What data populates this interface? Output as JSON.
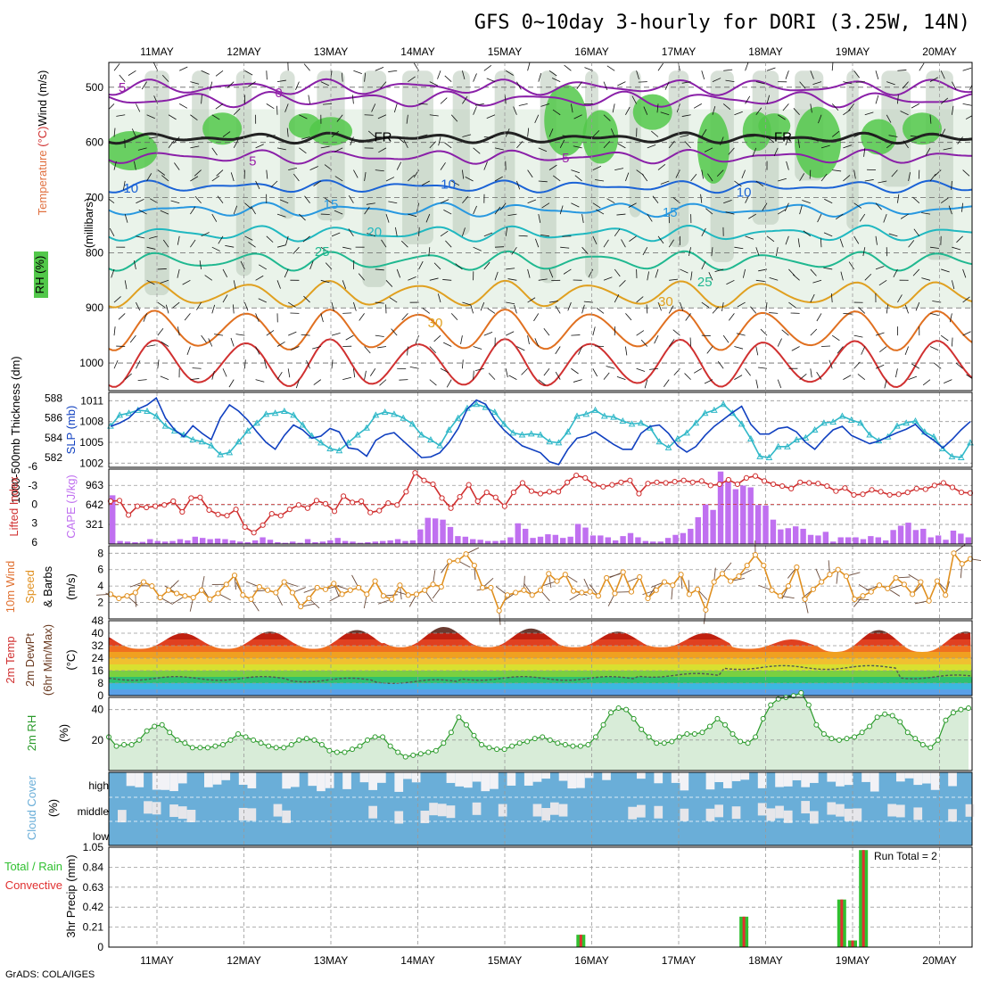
{
  "title": "GFS 0~10day 3-hourly for DORI (3.25W, 14N)",
  "footer": "GrADS: COLA/IGES",
  "dates": [
    "11MAY",
    "12MAY",
    "13MAY",
    "14MAY",
    "15MAY",
    "16MAY",
    "17MAY",
    "18MAY",
    "19MAY",
    "20MAY"
  ],
  "colors": {
    "rh_green": "#52c84a",
    "rh_gray": "#a8b8a8",
    "slp": "#1040c0",
    "thickness": "#30b8c8",
    "cape": "#c070f0",
    "li": "#d03030",
    "wind": "#e09020",
    "rh2m": "#2a9a2a",
    "cloud": "#6aaed8",
    "precip_total": "#30c030",
    "precip_conv": "#e03030"
  },
  "chart_data": [
    {
      "type": "heatmap",
      "name": "upper_air",
      "ylabels_parts": [
        "RH (%)",
        "Temperature",
        " (°C)",
        "Wind",
        " (m/s)"
      ],
      "yunit": "(millibars)",
      "levels": [
        500,
        600,
        700,
        800,
        900,
        1000
      ],
      "ylim": [
        1050,
        455
      ],
      "contour_labels": [
        {
          "text": "5",
          "day": 10.6,
          "p": 500,
          "color": "#9a20a8"
        },
        {
          "text": "0",
          "day": 12.4,
          "p": 510,
          "color": "#9a20a8"
        },
        {
          "text": "FR",
          "day": 13.6,
          "p": 590,
          "color": "#000"
        },
        {
          "text": "FR",
          "day": 18.2,
          "p": 590,
          "color": "#000"
        },
        {
          "text": "5",
          "day": 12.1,
          "p": 634,
          "color": "#9a20a8"
        },
        {
          "text": "5",
          "day": 15.7,
          "p": 628,
          "color": "#9a20a8"
        },
        {
          "text": "10",
          "day": 10.7,
          "p": 683,
          "color": "#1b63d6"
        },
        {
          "text": "10",
          "day": 14.35,
          "p": 676,
          "color": "#1b63d6"
        },
        {
          "text": "10",
          "day": 17.75,
          "p": 690,
          "color": "#1b63d6"
        },
        {
          "text": "15",
          "day": 13.0,
          "p": 712,
          "color": "#2898e0"
        },
        {
          "text": "15",
          "day": 16.9,
          "p": 727,
          "color": "#2898e0"
        },
        {
          "text": "20",
          "day": 13.5,
          "p": 762,
          "color": "#20b8c0"
        },
        {
          "text": "25",
          "day": 12.9,
          "p": 798,
          "color": "#20b890"
        },
        {
          "text": "25",
          "day": 17.3,
          "p": 853,
          "color": "#20b890"
        },
        {
          "text": "30",
          "day": 16.85,
          "p": 888,
          "color": "#e0a020"
        },
        {
          "text": "30",
          "day": 14.2,
          "p": 927,
          "color": "#e0a020"
        }
      ]
    },
    {
      "type": "line",
      "name": "slp_thickness",
      "ylabel_left": "1000-500mb Thickness (dm)",
      "ylabel_right": "SLP (mb)",
      "left_ticks": [
        582,
        584,
        586,
        588
      ],
      "right_ticks": [
        1002,
        1005,
        1008,
        1011
      ],
      "series": [
        {
          "id": "slp",
          "ylim": [
            1001.4,
            1012.2
          ],
          "values": [
            1007.3,
            1007.8,
            1008.5,
            1009.8,
            1010.4,
            1011.4,
            1008.5,
            1006.8,
            1005.8,
            1007.4,
            1006.3,
            1005.4,
            1008.5,
            1010.4,
            1009.5,
            1008.2,
            1006.5,
            1005.0,
            1004.0,
            1006.0,
            1007.5,
            1006.8,
            1005.6,
            1005.9,
            1007.0,
            1006.5,
            1004.2,
            1004.0,
            1003.0,
            1005.3,
            1006.1,
            1006.4,
            1005.2,
            1004.0,
            1002.8,
            1002.9,
            1003.5,
            1005.0,
            1007.0,
            1009.8,
            1011.1,
            1010.5,
            1008.3,
            1006.8,
            1005.6,
            1004.5,
            1004.0,
            1003.5,
            1002.2,
            1001.8,
            1004.0,
            1005.6,
            1005.9,
            1006.5,
            1005.6,
            1004.7,
            1004.0,
            1004.0,
            1006.3,
            1007.3,
            1007.5,
            1006.3,
            1004.5,
            1003.6,
            1004.4,
            1006.0,
            1007.3,
            1008.3,
            1009.3,
            1010.2,
            1007.6,
            1006.2,
            1006.2,
            1007.0,
            1007.2,
            1006.5,
            1005.0,
            1004.0,
            1005.5,
            1006.8,
            1007.3,
            1006.0,
            1005.4,
            1004.8,
            1005.2,
            1005.8,
            1006.4,
            1006.9,
            1007.6,
            1006.2,
            1005.3,
            1004.2,
            1005.4,
            1006.8,
            1008.0
          ]
        },
        {
          "id": "thickness",
          "ylim": [
            581.0,
            588.6
          ],
          "values": [
            585.2,
            586.3,
            586.5,
            586.8,
            586.7,
            586.2,
            585.2,
            584.7,
            584.3,
            583.8,
            583.6,
            583.2,
            582.3,
            582.5,
            583.6,
            584.7,
            585.5,
            586.4,
            586.5,
            586.7,
            586.3,
            585.3,
            584.2,
            583.5,
            582.9,
            582.7,
            583.5,
            584.3,
            585.0,
            586.3,
            586.6,
            586.4,
            586.0,
            585.4,
            584.3,
            583.8,
            583.2,
            584.8,
            586.0,
            587.0,
            587.4,
            587.1,
            586.6,
            585.4,
            584.5,
            584.3,
            584.4,
            584.3,
            583.6,
            583.5,
            584.6,
            586.2,
            586.4,
            586.8,
            586.2,
            586.1,
            585.7,
            585.4,
            585.5,
            585.0,
            583.6,
            583.0,
            583.9,
            584.5,
            585.5,
            586.5,
            586.8,
            587.4,
            586.5,
            585.4,
            583.9,
            582.1,
            582.0,
            583.1,
            583.1,
            583.8,
            584.0,
            584.8,
            585.5,
            585.6,
            586.2,
            585.8,
            585.5,
            584.3,
            583.7,
            584.1,
            585.2,
            585.5,
            585.7,
            584.6,
            584.1,
            582.9,
            582.1,
            582.0,
            583.5
          ]
        }
      ]
    },
    {
      "type": "bar",
      "name": "cape_li",
      "ylabel_left": "Lifted Index",
      "ylabel_right": "CAPE (J/kg)",
      "left_ticks": [
        -6,
        -3,
        0,
        3,
        6
      ],
      "right_ticks": [
        321,
        642,
        963
      ],
      "series": [
        {
          "id": "cape",
          "ylim": [
            0,
            1230
          ],
          "values": [
            800,
            50,
            40,
            30,
            35,
            80,
            50,
            40,
            50,
            80,
            60,
            120,
            100,
            80,
            90,
            80,
            60,
            40,
            30,
            60,
            110,
            70,
            30,
            20,
            40,
            20,
            80,
            30,
            40,
            60,
            100,
            50,
            40,
            20,
            30,
            40,
            50,
            60,
            80,
            50,
            60,
            240,
            430,
            420,
            400,
            280,
            130,
            120,
            80,
            70,
            50,
            50,
            60,
            110,
            340,
            250,
            100,
            120,
            160,
            150,
            100,
            120,
            330,
            270,
            140,
            140,
            110,
            60,
            130,
            180,
            110,
            50,
            40,
            40,
            100,
            150,
            180,
            250,
            440,
            650,
            560,
            1190,
            1050,
            900,
            960,
            930,
            640,
            630,
            400,
            240,
            260,
            290,
            250,
            150,
            140,
            200,
            40,
            110,
            110,
            110,
            80,
            130,
            110,
            60,
            230,
            300,
            350,
            230,
            250,
            110,
            140,
            70,
            220,
            170,
            110
          ]
        },
        {
          "id": "li",
          "ylim": [
            6.3,
            -5.6
          ],
          "values": [
            -0.5,
            -0.6,
            1.7,
            0.3,
            0.5,
            0.3,
            0.1,
            -0.5,
            1.2,
            -1.0,
            -1.1,
            0.9,
            1.6,
            1.8,
            0.8,
            3.6,
            4.5,
            3.3,
            1.5,
            1.8,
            0.8,
            0.1,
            0.6,
            -0.6,
            -0.1,
            1.1,
            -1.3,
            -0.3,
            -0.5,
            1.3,
            1.0,
            -0.2,
            0.1,
            -2.0,
            -5.0,
            -3.8,
            -3.2,
            -1.0,
            0.6,
            -1.2,
            -3.1,
            -0.5,
            -1.9,
            -1.1,
            0.3,
            -1.9,
            -3.4,
            -2.1,
            -1.7,
            -2.0,
            -2.0,
            -3.5,
            -4.6,
            -4.2,
            -3.1,
            -2.8,
            -3.1,
            -3.5,
            -3.8,
            -1.7,
            -3.3,
            -3.5,
            -3.4,
            -3.6,
            -3.8,
            -3.5,
            -3.7,
            -3.0,
            -3.2,
            -3.9,
            -3.2,
            -4.2,
            -4.5,
            -3.7,
            -3.2,
            -2.9,
            -2.5,
            -3.5,
            -3.4,
            -3.3,
            -2.9,
            -2.1,
            -2.6,
            -1.5,
            -1.6,
            -2.3,
            -2.0,
            -1.5,
            -1.6,
            -1.9,
            -2.5,
            -2.4,
            -3.0,
            -3.4,
            -2.7,
            -1.9,
            -1.8
          ]
        }
      ]
    },
    {
      "type": "line",
      "name": "wind10m",
      "ylabel": "10m Wind Speed & Barbs (m/s)",
      "yticks": [
        2,
        4,
        6,
        8
      ],
      "ylim": [
        0,
        8.9
      ],
      "values": [
        3.0,
        2.5,
        2.8,
        3.2,
        4.5,
        4.0,
        2.6,
        3.5,
        3.1,
        2.8,
        2.6,
        3.5,
        2.4,
        3.1,
        4.2,
        5.3,
        2.9,
        2.4,
        3.9,
        3.5,
        3.2,
        4.5,
        3.2,
        1.5,
        2.5,
        3.8,
        3.6,
        4.3,
        3.0,
        3.5,
        3.8,
        3.0,
        4.6,
        2.8,
        2.4,
        4.1,
        2.9,
        3.0,
        3.5,
        4.2,
        3.9,
        7.0,
        7.1,
        7.9,
        6.5,
        3.8,
        3.8,
        1.0,
        2.9,
        3.2,
        3.5,
        2.9,
        3.5,
        5.5,
        4.6,
        5.4,
        3.4,
        3.2,
        3.3,
        2.8,
        5.0,
        3.1,
        5.7,
        3.3,
        5.1,
        2.5,
        3.5,
        4.5,
        4.1,
        5.4,
        3.0,
        3.6,
        1.1,
        4.5,
        5.5,
        4.6,
        5.2,
        6.5,
        7.8,
        6.5,
        3.5,
        2.8,
        4.0,
        6.3,
        2.4,
        3.6,
        4.5,
        5.4,
        6.0,
        5.2,
        2.4,
        2.8,
        3.3,
        4.1,
        3.7,
        5.0,
        4.2,
        3.0,
        4.5,
        2.2,
        4.6,
        2.9,
        8.0,
        6.7,
        7.3
      ]
    },
    {
      "type": "area",
      "name": "temp2m",
      "ylabel": "2m Temp 2m DewPt (6hr Min/Max) (°C)",
      "yticks": [
        0,
        8,
        16,
        24,
        32,
        40,
        48
      ],
      "ylim": [
        0,
        48
      ],
      "temp_min": [
        30,
        30,
        30,
        31,
        31,
        31,
        31,
        30,
        28,
        28
      ],
      "temp_max": [
        40,
        41,
        42,
        44,
        43,
        41,
        40,
        36,
        42,
        41
      ],
      "dewpoint": [
        11,
        11,
        10,
        9,
        11,
        11,
        13,
        18,
        18,
        12
      ]
    },
    {
      "type": "area",
      "name": "rh2m",
      "ylabel": "2m RH (%)",
      "yticks": [
        20,
        40
      ],
      "ylim": [
        0,
        48
      ],
      "values": [
        22,
        16,
        17,
        17,
        20,
        26,
        29,
        30,
        25,
        20,
        18,
        15,
        15,
        15,
        16,
        17,
        20,
        24,
        22,
        20,
        18,
        16,
        15,
        15,
        17,
        20,
        21,
        20,
        17,
        13,
        12,
        12,
        14,
        16,
        20,
        22,
        22,
        16,
        12,
        9,
        10,
        11,
        12,
        13,
        18,
        25,
        35,
        30,
        23,
        17,
        15,
        14,
        14,
        16,
        18,
        19,
        21,
        22,
        20,
        18,
        17,
        16,
        16,
        17,
        22,
        30,
        38,
        41,
        40,
        34,
        27,
        22,
        18,
        18,
        19,
        22,
        24,
        24,
        25,
        29,
        34,
        30,
        24,
        19,
        18,
        22,
        34,
        43,
        47,
        48,
        49,
        51,
        43,
        30,
        24,
        21,
        20,
        21,
        22,
        25,
        29,
        35,
        37,
        36,
        32,
        25,
        21,
        17,
        15,
        20,
        33,
        38,
        40,
        41
      ]
    },
    {
      "type": "heatmap",
      "name": "cloud_cover",
      "ylabel": "Cloud Cover (%)",
      "layers": [
        "high",
        "middle",
        "low"
      ]
    },
    {
      "type": "bar",
      "name": "precip",
      "ylabel": "3hr Precip (mm)",
      "legend": [
        "Total / Rain",
        "Convective"
      ],
      "yticks": [
        "0",
        "0.21",
        "0.42",
        "0.63",
        "0.84",
        "1.05"
      ],
      "ylim": [
        0,
        1.05
      ],
      "run_total": "Run Total = 2",
      "events": [
        {
          "day": 15.875,
          "total": 0.13,
          "conv": 0.13
        },
        {
          "day": 17.75,
          "total": 0.32,
          "conv": 0.32
        },
        {
          "day": 18.875,
          "total": 0.5,
          "conv": 0.5
        },
        {
          "day": 19.0,
          "total": 0.07,
          "conv": 0.07
        },
        {
          "day": 19.125,
          "total": 1.02,
          "conv": 1.02
        }
      ]
    }
  ]
}
